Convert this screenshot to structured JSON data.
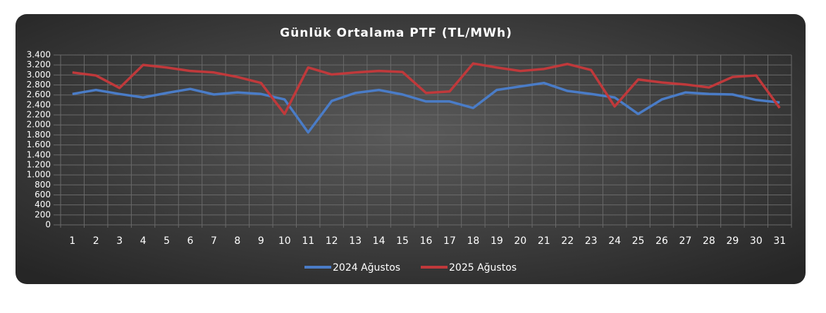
{
  "chart_data": {
    "type": "line",
    "title": "Günlük Ortalama PTF (TL/MWh)",
    "categories": [
      "1",
      "2",
      "3",
      "4",
      "5",
      "6",
      "7",
      "8",
      "9",
      "10",
      "11",
      "12",
      "13",
      "14",
      "15",
      "16",
      "17",
      "18",
      "19",
      "20",
      "21",
      "22",
      "23",
      "24",
      "25",
      "26",
      "27",
      "28",
      "29",
      "30",
      "31"
    ],
    "series": [
      {
        "name": "2024 Ağustos",
        "color": "#4a7cc7",
        "values": [
          2620,
          2700,
          2620,
          2550,
          2640,
          2720,
          2610,
          2650,
          2620,
          2510,
          1850,
          2480,
          2640,
          2700,
          2610,
          2470,
          2470,
          2340,
          2700,
          2770,
          2840,
          2680,
          2620,
          2550,
          2220,
          2510,
          2650,
          2620,
          2610,
          2500,
          2450
        ]
      },
      {
        "name": "2025 Ağustos",
        "color": "#c0393b",
        "values": [
          3050,
          2990,
          2740,
          3200,
          3150,
          3080,
          3050,
          2960,
          2840,
          2220,
          3150,
          3010,
          3050,
          3080,
          3060,
          2640,
          2670,
          3230,
          3150,
          3080,
          3120,
          3220,
          3100,
          2370,
          2910,
          2850,
          2810,
          2750,
          2960,
          2990,
          2340
        ]
      }
    ],
    "ylim": [
      0,
      3400
    ],
    "yticks": [
      0,
      200,
      400,
      600,
      800,
      {
        "value": 1000,
        "label": "1.000"
      },
      {
        "value": 1200,
        "label": "1.200"
      },
      {
        "value": 1400,
        "label": "1.400"
      },
      {
        "value": 1600,
        "label": "1.600"
      },
      {
        "value": 1800,
        "label": "1.800"
      },
      {
        "value": 2000,
        "label": "2.000"
      },
      {
        "value": 2200,
        "label": "2.200"
      },
      {
        "value": 2400,
        "label": "2.400"
      },
      {
        "value": 2600,
        "label": "2.600"
      },
      {
        "value": 2800,
        "label": "2.800"
      },
      {
        "value": 3000,
        "label": "3.000"
      },
      {
        "value": 3200,
        "label": "3.200"
      },
      {
        "value": 3400,
        "label": "3.400"
      }
    ],
    "grid": true,
    "legend": "bottom"
  }
}
